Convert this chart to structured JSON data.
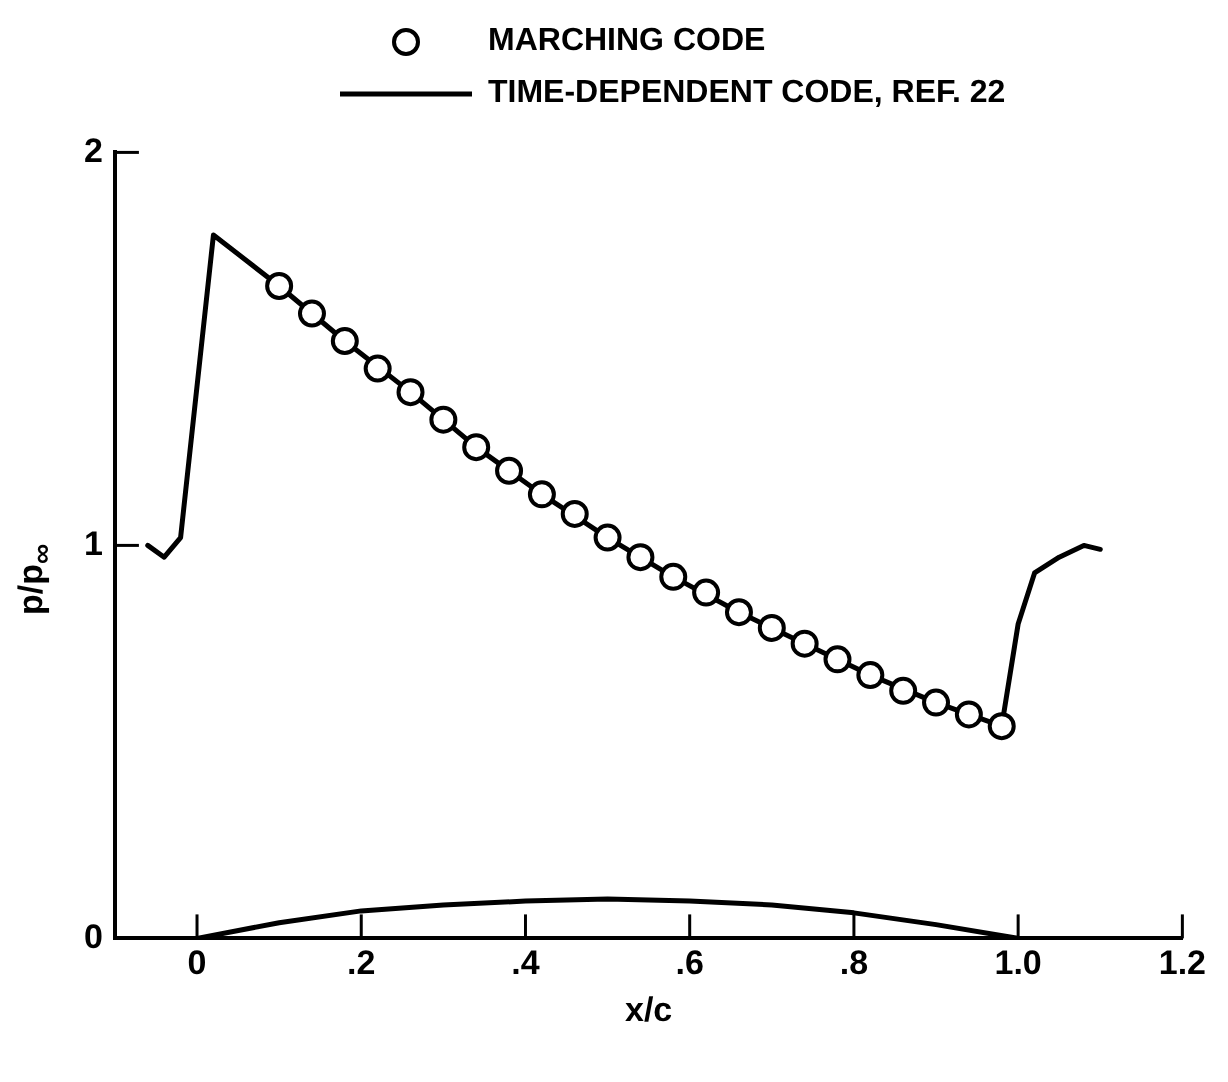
{
  "chart_data": {
    "type": "line",
    "xlabel": "x/c",
    "ylabel": "p/p$_{∞}$",
    "legend": "top",
    "grid": false,
    "xlim": [
      -0.1,
      1.2
    ],
    "xticks": [
      0,
      {
        "value": 0.2,
        "label": ".2"
      },
      {
        "value": 0.4,
        "label": ".4"
      },
      {
        "value": 0.6,
        "label": ".6"
      },
      {
        "value": 0.8,
        "label": ".8"
      },
      {
        "value": 1.0,
        "label": "1.0"
      },
      1.2
    ],
    "ylim": [
      0,
      2
    ],
    "yticks": [
      0,
      1,
      2
    ],
    "series": [
      {
        "name": "MARCHING CODE",
        "type": "scatter",
        "marker": "circle",
        "color": "#000000",
        "x": [
          0.1,
          0.14,
          0.18,
          0.22,
          0.26,
          0.3,
          0.34,
          0.38,
          0.42,
          0.46,
          0.5,
          0.54,
          0.58,
          0.62,
          0.66,
          0.7,
          0.74,
          0.78,
          0.82,
          0.86,
          0.9,
          0.94,
          0.98
        ],
        "values": [
          1.66,
          1.59,
          1.52,
          1.45,
          1.39,
          1.32,
          1.25,
          1.19,
          1.13,
          1.08,
          1.02,
          0.97,
          0.92,
          0.88,
          0.83,
          0.79,
          0.75,
          0.71,
          0.67,
          0.63,
          0.6,
          0.57,
          0.54
        ]
      },
      {
        "name": "TIME-DEPENDENT CODE, REF. 22",
        "type": "line",
        "marker": "none",
        "line_style": "solid",
        "color": "#000000",
        "x": [
          -0.06,
          -0.04,
          -0.02,
          0.02,
          0.1,
          0.18,
          0.26,
          0.34,
          0.42,
          0.5,
          0.58,
          0.66,
          0.74,
          0.82,
          0.9,
          0.98,
          1.0,
          1.02,
          1.05,
          1.08,
          1.1
        ],
        "values": [
          1.0,
          0.97,
          1.02,
          1.79,
          1.66,
          1.52,
          1.39,
          1.25,
          1.13,
          1.02,
          0.92,
          0.83,
          0.75,
          0.67,
          0.6,
          0.54,
          0.8,
          0.93,
          0.97,
          1.0,
          0.99
        ]
      },
      {
        "type": "line",
        "marker": "none",
        "line_style": "solid",
        "color": "#000000",
        "x": [
          0,
          0.1,
          0.2,
          0.3,
          0.4,
          0.5,
          0.6,
          0.7,
          0.8,
          0.9,
          1.0
        ],
        "values": [
          0,
          0.04,
          0.07,
          0.085,
          0.095,
          0.1,
          0.095,
          0.085,
          0.065,
          0.035,
          0
        ]
      }
    ]
  }
}
